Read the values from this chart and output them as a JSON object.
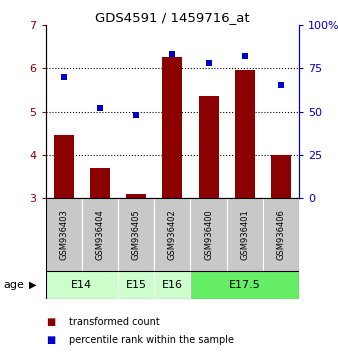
{
  "title": "GDS4591 / 1459716_at",
  "samples": [
    "GSM936403",
    "GSM936404",
    "GSM936405",
    "GSM936402",
    "GSM936400",
    "GSM936401",
    "GSM936406"
  ],
  "transformed_count": [
    4.45,
    3.7,
    3.1,
    6.25,
    5.35,
    5.95,
    4.0
  ],
  "percentile_rank": [
    70,
    52,
    48,
    83,
    78,
    82,
    65
  ],
  "ylim_left": [
    3,
    7
  ],
  "ylim_right": [
    0,
    100
  ],
  "yticks_left": [
    3,
    4,
    5,
    6,
    7
  ],
  "yticks_right": [
    0,
    25,
    50,
    75,
    100
  ],
  "yticklabels_right": [
    "0",
    "25",
    "50",
    "75",
    "100%"
  ],
  "bar_color": "#8B0000",
  "scatter_color": "#0000CD",
  "age_groups": [
    {
      "label": "E14",
      "start": 0,
      "end": 2,
      "color": "#ccffcc"
    },
    {
      "label": "E15",
      "start": 2,
      "end": 3,
      "color": "#ccffcc"
    },
    {
      "label": "E16",
      "start": 3,
      "end": 4,
      "color": "#ccffcc"
    },
    {
      "label": "E17.5",
      "start": 4,
      "end": 7,
      "color": "#66ee66"
    }
  ],
  "sample_bg_color": "#c8c8c8",
  "legend_red_label": "transformed count",
  "legend_blue_label": "percentile rank within the sample",
  "age_label": "age"
}
